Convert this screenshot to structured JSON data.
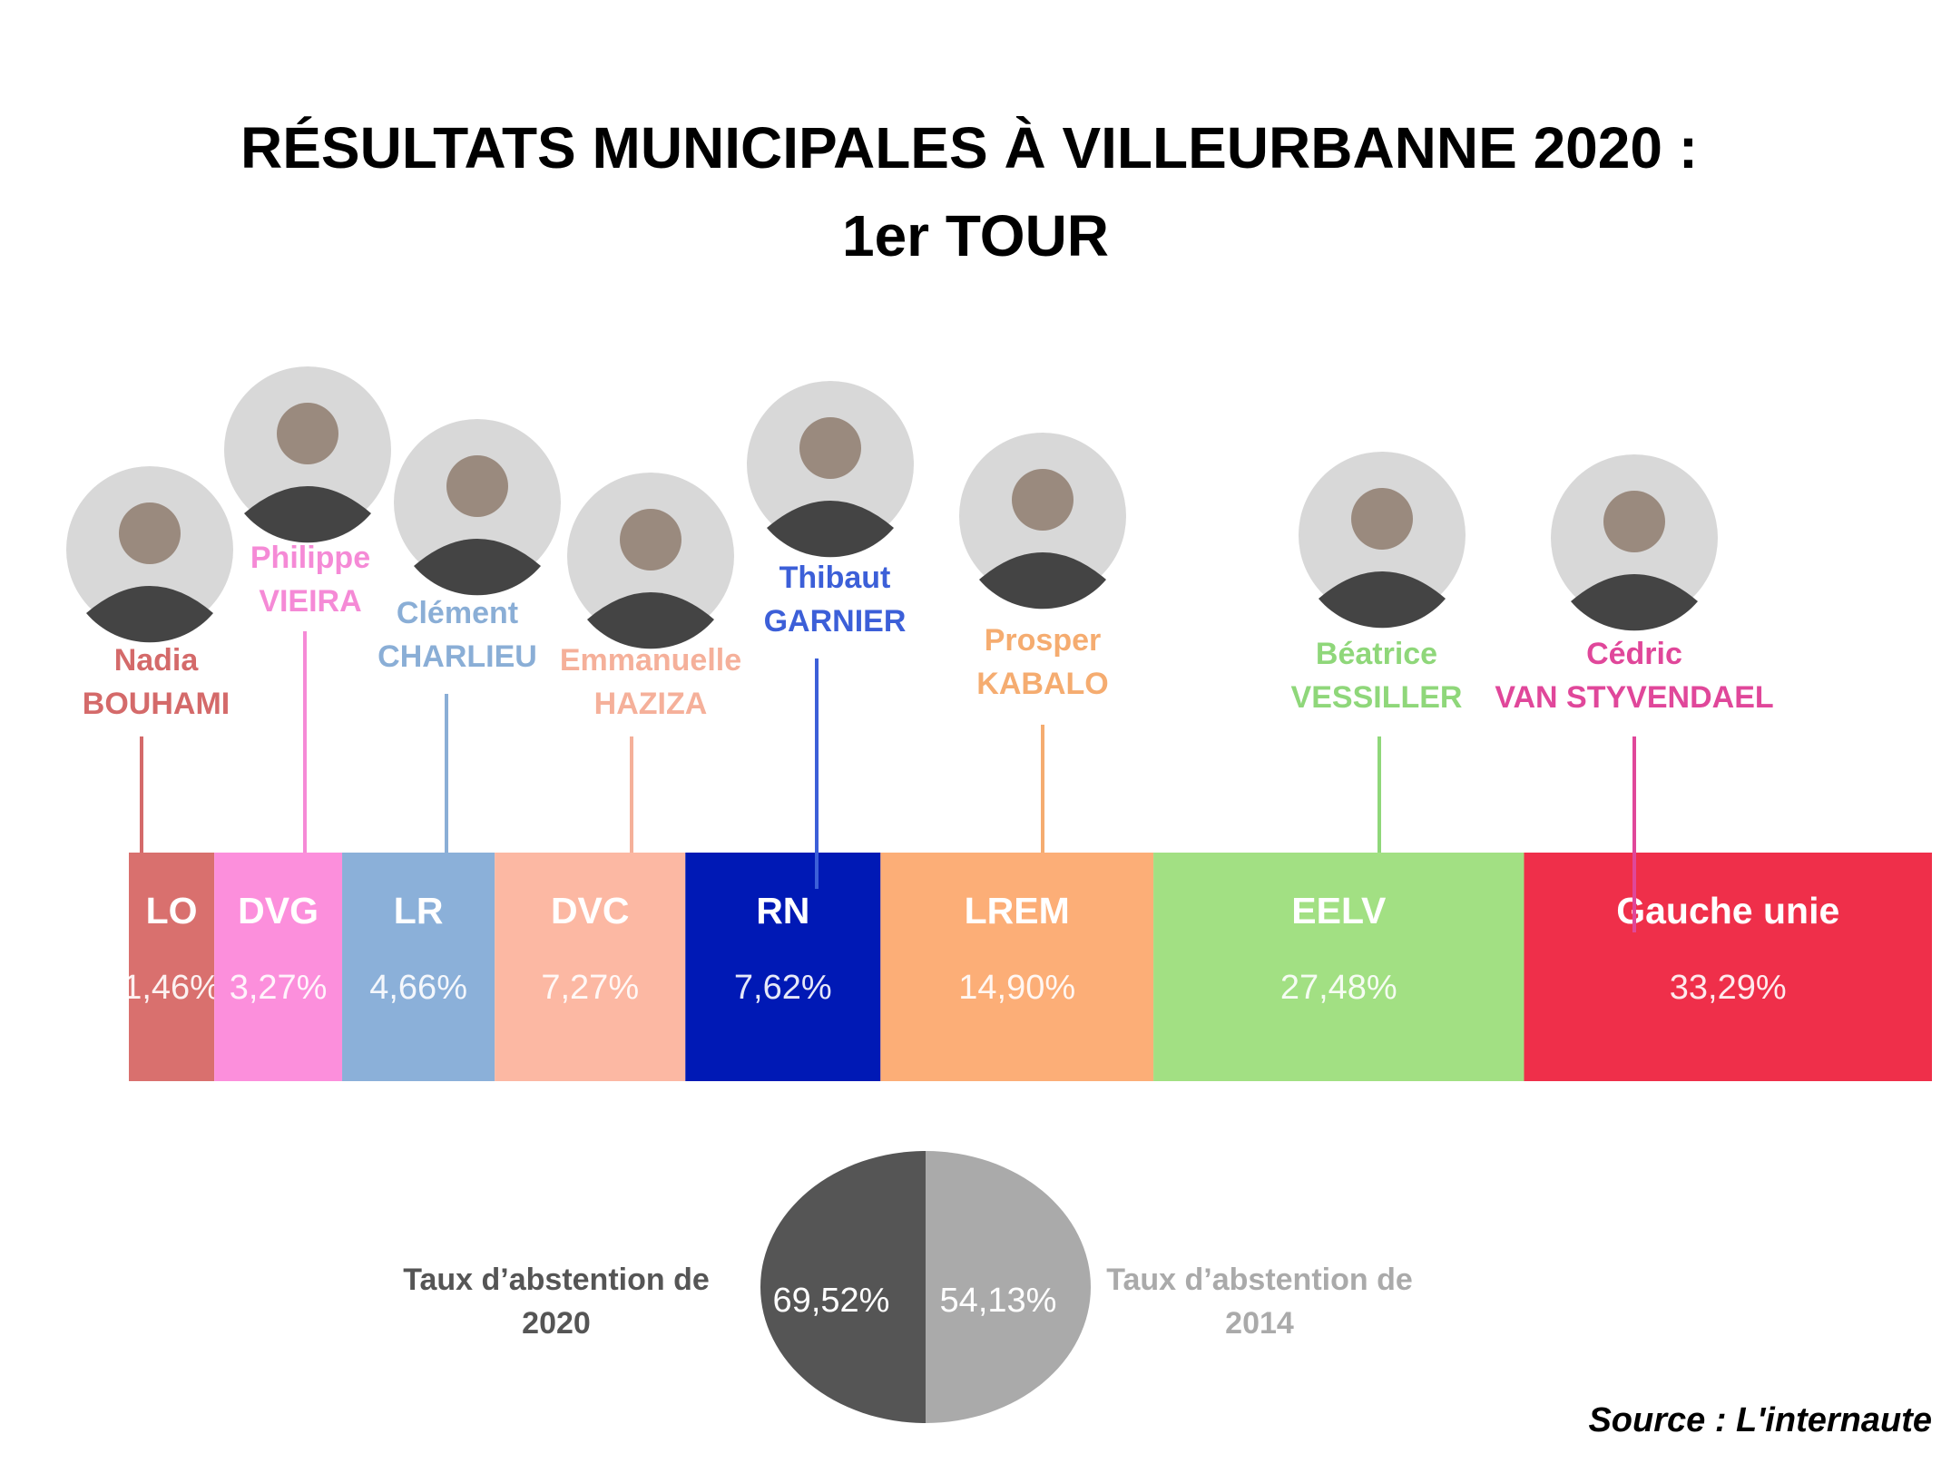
{
  "chart_data": [
    {
      "type": "stacked-bar",
      "title": "RÉSULTATS MUNICIPALES À VILLEURBANNE 2020 :",
      "subtitle": "1er TOUR",
      "categories": [
        "LO",
        "DVG",
        "LR",
        "DVC",
        "RN",
        "LREM",
        "EELV",
        "Gauche unie"
      ],
      "values": [
        1.46,
        3.27,
        4.66,
        7.27,
        7.62,
        14.9,
        27.48,
        33.29
      ],
      "value_labels": [
        "1,46%",
        "3,27%",
        "4,66%",
        "7,27%",
        "7,62%",
        "14,90%",
        "27,48%",
        "33,29%"
      ],
      "colors": [
        "#d9706e",
        "#fc8fdc",
        "#8bb0d9",
        "#fcb8a3",
        "#0019b5",
        "#fcae77",
        "#a2e083",
        "#ef2f4a"
      ],
      "name_colors": [
        "#d46a6a",
        "#f58ad6",
        "#8aaed6",
        "#f5b09a",
        "#3c5fd8",
        "#f5ac70",
        "#8fd77a",
        "#e0479a"
      ],
      "candidates": [
        {
          "first": "Nadia",
          "last": "BOUHAMI"
        },
        {
          "first": "Philippe",
          "last": "VIEIRA"
        },
        {
          "first": "Clément",
          "last": "CHARLIEU"
        },
        {
          "first": "Emmanuelle",
          "last": "HAZIZA"
        },
        {
          "first": "Thibaut",
          "last": "GARNIER"
        },
        {
          "first": "Prosper",
          "last": "KABALO"
        },
        {
          "first": "Béatrice",
          "last": "VESSILLER"
        },
        {
          "first": "Cédric",
          "last": "VAN STYVENDAEL"
        }
      ]
    },
    {
      "type": "pie",
      "categories": [
        "Taux d’abstention de 2020",
        "Taux d’abstention de 2014"
      ],
      "values": [
        69.52,
        54.13
      ],
      "value_labels": [
        "69,52%",
        "54,13%"
      ],
      "colors": [
        "#555555",
        "#aaaaaa"
      ]
    }
  ],
  "source": "Source : L'internaute"
}
